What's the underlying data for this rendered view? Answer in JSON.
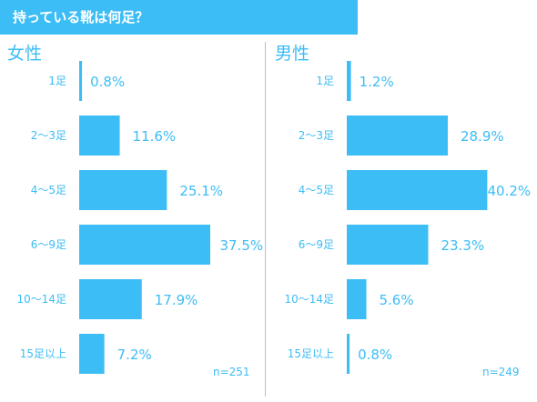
{
  "title": "持っている靴は何足？",
  "chart_data": [
    {
      "type": "bar",
      "orientation": "horizontal",
      "title": "女性",
      "categories": [
        "1足",
        "2〜3足",
        "4〜5足",
        "6〜9足",
        "10〜14足",
        "15足以上"
      ],
      "values": [
        0.8,
        11.6,
        25.1,
        37.5,
        17.9,
        7.2
      ],
      "value_labels": [
        "0.8%",
        "11.6%",
        "25.1%",
        "37.5%",
        "17.9%",
        "7.2%"
      ],
      "note": "n=251",
      "xlim": [
        0,
        45
      ],
      "grid": false,
      "color": "#3dbdf5"
    },
    {
      "type": "bar",
      "orientation": "horizontal",
      "title": "男性",
      "categories": [
        "1足",
        "2〜3足",
        "4〜5足",
        "6〜9足",
        "10〜14足",
        "15足以上"
      ],
      "values": [
        1.2,
        28.9,
        40.2,
        23.3,
        5.6,
        0.8
      ],
      "value_labels": [
        "1.2%",
        "28.9%",
        "40.2%",
        "23.3%",
        "5.6%",
        "0.8%"
      ],
      "note": "n=249",
      "xlim": [
        0,
        45
      ],
      "grid": false,
      "color": "#3dbdf5"
    }
  ]
}
